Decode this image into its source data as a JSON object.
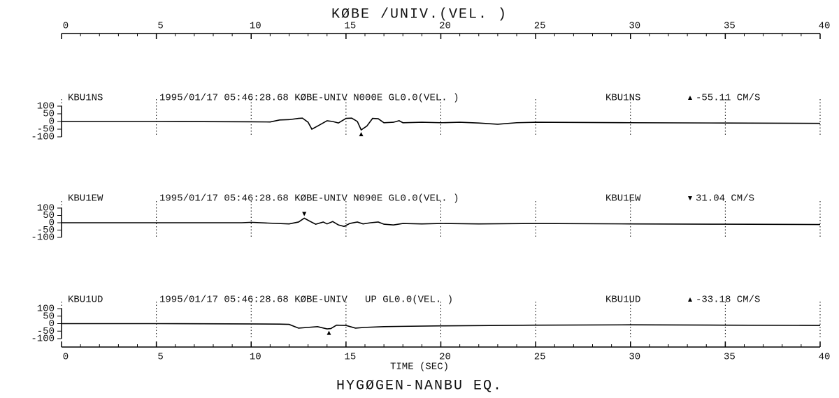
{
  "title": "KØBE /UNIV.(VEL. )",
  "footer": "HYGØGEN-NANBU EQ.",
  "x_axis": {
    "xlim": [
      0,
      40
    ],
    "xticks": [
      0,
      5,
      10,
      15,
      20,
      25,
      30,
      35,
      40
    ],
    "xminorticks": [
      0,
      1,
      2,
      3,
      4,
      5,
      6,
      7,
      8,
      9,
      10,
      11,
      12,
      13,
      14,
      15,
      16,
      17,
      18,
      19,
      20,
      21,
      22,
      23,
      24,
      25,
      26,
      27,
      28,
      29,
      30,
      31,
      32,
      33,
      34,
      35,
      36,
      37,
      38,
      39,
      40
    ],
    "xlabel": "TIME (SEC)",
    "grid": true
  },
  "chart_data": [
    {
      "type": "line",
      "station": "KBU1NS",
      "info": "1995/01/17 05:46:28.68 KØBE-UNIV N000E GL0.0(VEL. )",
      "station_right": "KBU1NS",
      "peak": {
        "x": 15.8,
        "value": -55.11,
        "label": "-55.11 CM/S"
      },
      "ylim": [
        -100,
        100
      ],
      "yticks": [
        100,
        50,
        0,
        -50,
        -100
      ],
      "color": "#000000",
      "x": [
        0,
        5,
        10,
        11,
        11.5,
        12,
        12.5,
        12.7,
        13,
        13.2,
        13.5,
        14,
        14.3,
        14.6,
        15,
        15.3,
        15.6,
        15.8,
        16.1,
        16.4,
        16.7,
        17,
        17.5,
        17.8,
        18,
        19,
        20,
        21,
        22,
        23,
        24,
        25,
        30,
        35,
        40
      ],
      "values": [
        0,
        0,
        -2,
        -3,
        10,
        12,
        20,
        22,
        -5,
        -50,
        -30,
        5,
        0,
        -10,
        20,
        22,
        0,
        -55,
        -30,
        20,
        18,
        -8,
        -5,
        5,
        -8,
        -5,
        -8,
        -5,
        -10,
        -18,
        -8,
        -5,
        -8,
        -10,
        -12
      ]
    },
    {
      "type": "line",
      "station": "KBU1EW",
      "info": "1995/01/17 05:46:28.68 KØBE-UNIV N090E GL0.0(VEL. )",
      "station_right": "KBU1EW",
      "peak": {
        "x": 12.8,
        "value": 31.04,
        "label": "31.04 CM/S"
      },
      "ylim": [
        -100,
        100
      ],
      "yticks": [
        100,
        50,
        0,
        -50,
        -100
      ],
      "color": "#000000",
      "x": [
        0,
        5,
        9.5,
        10,
        11,
        12,
        12.5,
        12.8,
        13.1,
        13.4,
        13.8,
        14,
        14.3,
        14.6,
        14.9,
        15.2,
        15.6,
        15.9,
        16.3,
        16.7,
        17,
        17.5,
        18,
        19,
        20,
        22,
        25,
        30,
        35,
        40
      ],
      "values": [
        0,
        0,
        0,
        3,
        -3,
        -8,
        5,
        31,
        10,
        -10,
        5,
        -8,
        8,
        -15,
        -25,
        -5,
        5,
        -8,
        0,
        5,
        -10,
        -15,
        -5,
        -8,
        -5,
        -8,
        -5,
        -8,
        -10,
        -12
      ]
    },
    {
      "type": "line",
      "station": "KBU1UD",
      "info": "1995/01/17 05:46:28.68 KØBE-UNIV   UP GL0.0(VEL. )",
      "station_right": "KBU1UD",
      "peak": {
        "x": 14.1,
        "value": -33.18,
        "label": "-33.18 CM/S"
      },
      "ylim": [
        -100,
        100
      ],
      "yticks": [
        100,
        50,
        0,
        -50,
        -100
      ],
      "color": "#000000",
      "x": [
        0,
        5,
        10,
        11.5,
        12,
        12.5,
        13,
        13.5,
        14,
        14.2,
        14.5,
        15,
        15.5,
        16,
        17,
        18,
        20,
        22,
        25,
        30,
        35,
        40
      ],
      "values": [
        0,
        0,
        -2,
        -3,
        -5,
        -30,
        -25,
        -20,
        -35,
        -33,
        -10,
        -12,
        -30,
        -25,
        -20,
        -18,
        -15,
        -13,
        -10,
        -8,
        -10,
        -12
      ]
    }
  ]
}
